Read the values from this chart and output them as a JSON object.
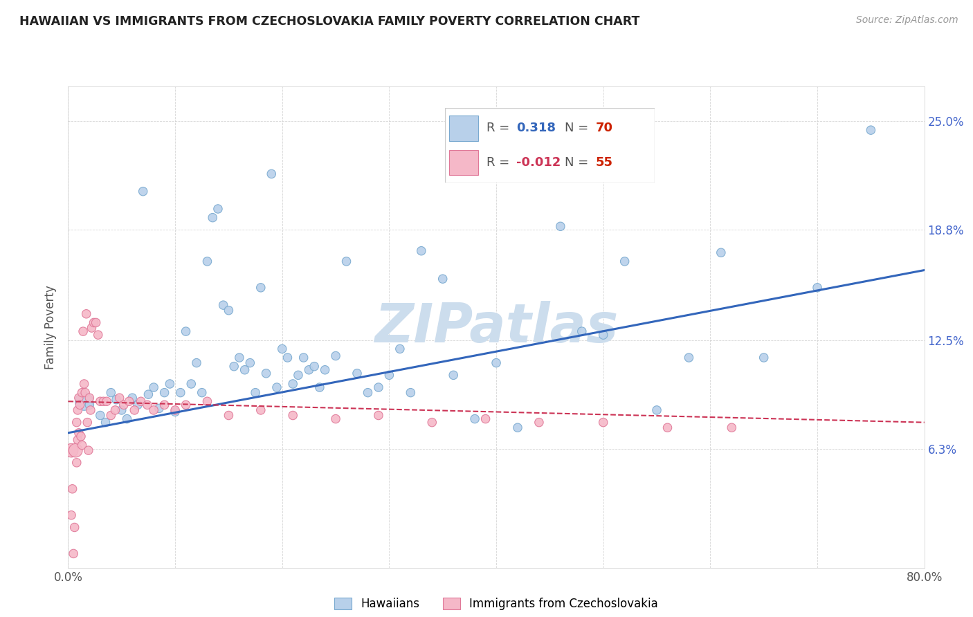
{
  "title": "HAWAIIAN VS IMMIGRANTS FROM CZECHOSLOVAKIA FAMILY POVERTY CORRELATION CHART",
  "source": "Source: ZipAtlas.com",
  "ylabel": "Family Poverty",
  "ytick_labels": [
    "6.3%",
    "12.5%",
    "18.8%",
    "25.0%"
  ],
  "ytick_values": [
    0.063,
    0.125,
    0.188,
    0.25
  ],
  "xmin": 0.0,
  "xmax": 0.8,
  "ymin": -0.005,
  "ymax": 0.27,
  "legend_blue_r": "0.318",
  "legend_blue_n": "70",
  "legend_pink_r": "-0.012",
  "legend_pink_n": "55",
  "blue_color": "#b8d0ea",
  "blue_edge": "#7aaad0",
  "pink_color": "#f5b8c8",
  "pink_edge": "#e07898",
  "blue_line_color": "#3366bb",
  "pink_line_color": "#cc3355",
  "watermark": "ZIPatlas",
  "watermark_color": "#ccdded",
  "blue_r_color": "#3366bb",
  "blue_n_color": "#cc2200",
  "pink_r_color": "#cc3355",
  "pink_n_color": "#cc2200",
  "hawaiians_x": [
    0.015,
    0.02,
    0.03,
    0.035,
    0.04,
    0.045,
    0.05,
    0.055,
    0.06,
    0.065,
    0.07,
    0.075,
    0.08,
    0.085,
    0.09,
    0.095,
    0.1,
    0.105,
    0.11,
    0.115,
    0.12,
    0.125,
    0.13,
    0.135,
    0.14,
    0.145,
    0.15,
    0.155,
    0.16,
    0.165,
    0.17,
    0.175,
    0.18,
    0.185,
    0.19,
    0.195,
    0.2,
    0.205,
    0.21,
    0.215,
    0.22,
    0.225,
    0.23,
    0.235,
    0.24,
    0.25,
    0.26,
    0.27,
    0.28,
    0.29,
    0.3,
    0.31,
    0.32,
    0.33,
    0.35,
    0.36,
    0.38,
    0.4,
    0.42,
    0.44,
    0.46,
    0.48,
    0.5,
    0.52,
    0.55,
    0.58,
    0.61,
    0.65,
    0.7,
    0.75
  ],
  "hawaiians_y": [
    0.09,
    0.088,
    0.082,
    0.078,
    0.095,
    0.091,
    0.085,
    0.08,
    0.092,
    0.088,
    0.21,
    0.094,
    0.098,
    0.086,
    0.095,
    0.1,
    0.084,
    0.095,
    0.13,
    0.1,
    0.112,
    0.095,
    0.17,
    0.195,
    0.2,
    0.145,
    0.142,
    0.11,
    0.115,
    0.108,
    0.112,
    0.095,
    0.155,
    0.106,
    0.22,
    0.098,
    0.12,
    0.115,
    0.1,
    0.105,
    0.115,
    0.108,
    0.11,
    0.098,
    0.108,
    0.116,
    0.17,
    0.106,
    0.095,
    0.098,
    0.105,
    0.12,
    0.095,
    0.176,
    0.16,
    0.105,
    0.08,
    0.112,
    0.075,
    0.218,
    0.19,
    0.13,
    0.128,
    0.17,
    0.085,
    0.115,
    0.175,
    0.115,
    0.155,
    0.245
  ],
  "hawaii_sizes": [
    350,
    80,
    80,
    80,
    80,
    80,
    80,
    80,
    80,
    80,
    80,
    80,
    80,
    80,
    80,
    80,
    80,
    80,
    80,
    80,
    80,
    80,
    80,
    80,
    80,
    80,
    80,
    80,
    80,
    80,
    80,
    80,
    80,
    80,
    80,
    80,
    80,
    80,
    80,
    80,
    80,
    80,
    80,
    80,
    80,
    80,
    80,
    80,
    80,
    80,
    80,
    80,
    80,
    80,
    80,
    80,
    80,
    80,
    80,
    80,
    80,
    80,
    80,
    80,
    80,
    80,
    80,
    80,
    80,
    80
  ],
  "czech_x": [
    0.003,
    0.003,
    0.004,
    0.005,
    0.006,
    0.007,
    0.008,
    0.008,
    0.009,
    0.009,
    0.01,
    0.01,
    0.011,
    0.012,
    0.013,
    0.013,
    0.014,
    0.015,
    0.016,
    0.017,
    0.018,
    0.019,
    0.02,
    0.021,
    0.022,
    0.024,
    0.026,
    0.028,
    0.03,
    0.033,
    0.036,
    0.04,
    0.044,
    0.048,
    0.052,
    0.057,
    0.062,
    0.068,
    0.074,
    0.08,
    0.09,
    0.1,
    0.11,
    0.13,
    0.15,
    0.18,
    0.21,
    0.25,
    0.29,
    0.34,
    0.39,
    0.44,
    0.5,
    0.56,
    0.62
  ],
  "czech_y": [
    0.062,
    0.025,
    0.04,
    0.003,
    0.018,
    0.062,
    0.055,
    0.078,
    0.068,
    0.085,
    0.072,
    0.092,
    0.088,
    0.07,
    0.065,
    0.095,
    0.13,
    0.1,
    0.095,
    0.14,
    0.078,
    0.062,
    0.092,
    0.085,
    0.132,
    0.135,
    0.135,
    0.128,
    0.09,
    0.09,
    0.09,
    0.082,
    0.085,
    0.092,
    0.088,
    0.09,
    0.085,
    0.09,
    0.088,
    0.085,
    0.088,
    0.085,
    0.088,
    0.09,
    0.082,
    0.085,
    0.082,
    0.08,
    0.082,
    0.078,
    0.08,
    0.078,
    0.078,
    0.075,
    0.075
  ],
  "czech_sizes": [
    200,
    80,
    80,
    80,
    80,
    200,
    80,
    80,
    80,
    80,
    80,
    80,
    80,
    80,
    80,
    80,
    80,
    80,
    80,
    80,
    80,
    80,
    80,
    80,
    80,
    80,
    80,
    80,
    80,
    80,
    80,
    80,
    80,
    80,
    80,
    80,
    80,
    80,
    80,
    80,
    80,
    80,
    80,
    80,
    80,
    80,
    80,
    80,
    80,
    80,
    80,
    80,
    80,
    80,
    80
  ]
}
